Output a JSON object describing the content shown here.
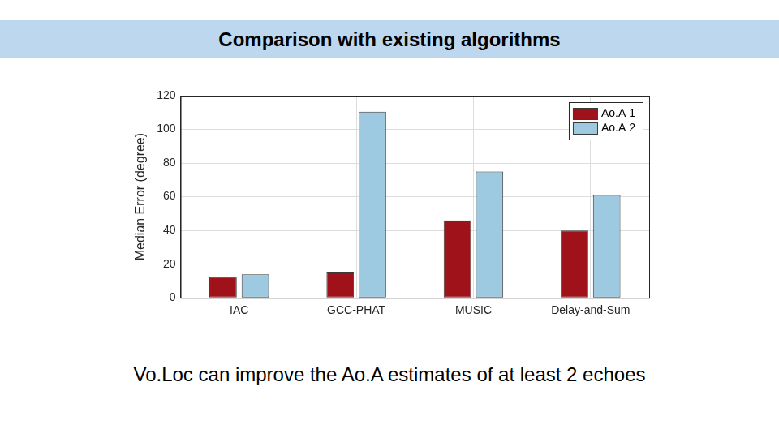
{
  "chart_data": {
    "type": "bar",
    "title": "Comparison with existing algorithms",
    "annotations": [
      "Vo.Loc can improve the Ao.A estimates of at least 2 echoes"
    ],
    "y_label": "Median Error (degree)",
    "categories": [
      "IAC",
      "GCC-PHAT",
      "MUSIC",
      "Delay-and-Sum"
    ],
    "series": [
      {
        "name": "Ao.A 1",
        "color": "#a01219",
        "values": [
          12.5,
          15.5,
          46,
          40
        ]
      },
      {
        "name": "Ao.A 2",
        "color": "#9ecae1",
        "values": [
          14,
          110.5,
          75,
          61
        ]
      }
    ],
    "ylim": [
      0,
      120
    ],
    "yticks": [
      0,
      20,
      40,
      60,
      80,
      100,
      120
    ],
    "grid": true,
    "legend": "top-right"
  }
}
